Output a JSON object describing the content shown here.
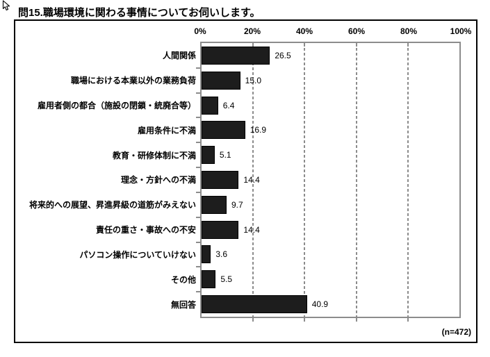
{
  "page": {
    "title": "問15.職場環境に関わる事情についてお伺いします。",
    "sample_label": "(n=472)"
  },
  "chart_data": {
    "type": "bar",
    "orientation": "horizontal",
    "title": "問15.職場環境に関わる事情についてお伺いします。",
    "categories": [
      "人間関係",
      "職場における本業以外の業務負荷",
      "雇用者側の都合（施設の閉鎖・統廃合等）",
      "雇用条件に不満",
      "教育・研修体制に不満",
      "理念・方針への不満",
      "将来的への展望、昇進昇級の道筋がみえない",
      "責任の重さ・事故への不安",
      "パソコン操作についていけない",
      "その他",
      "無回答"
    ],
    "values": [
      26.5,
      15.0,
      6.4,
      16.9,
      5.1,
      14.4,
      9.7,
      14.4,
      3.6,
      5.5,
      40.9
    ],
    "value_labels": [
      "26.5",
      "15.0",
      "6.4",
      "16.9",
      "5.1",
      "14.4",
      "9.7",
      "14.4",
      "3.6",
      "5.5",
      "40.9"
    ],
    "x_tick_labels": [
      "0%",
      "20%",
      "40%",
      "60%",
      "80%",
      "100%"
    ],
    "xlim": [
      0,
      100
    ],
    "grid": "dashed-vertical-at-20-40-60-80",
    "legend": "none",
    "n_label": "(n=472)",
    "bar_color": "#1d1d1d",
    "frame_color": "#8c8c8c",
    "text_color": "#000000"
  }
}
